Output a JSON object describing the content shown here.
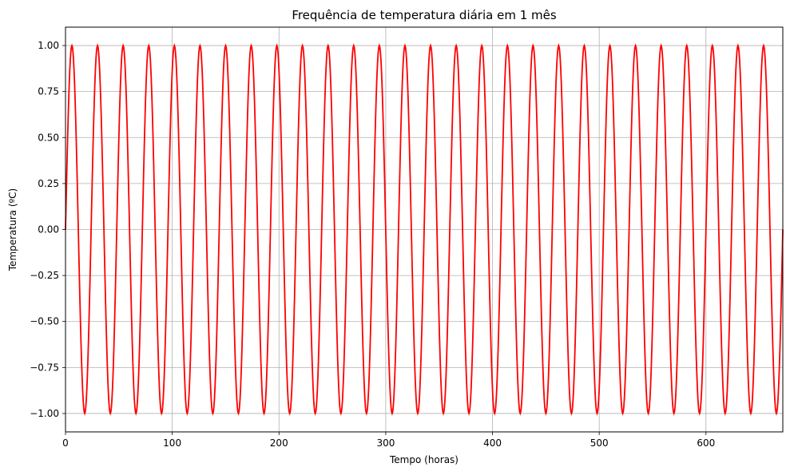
{
  "chart_data": {
    "type": "line",
    "title": "Frequência de temperatura diária em 1 mês",
    "xlabel": "Tempo (horas)",
    "ylabel": "Temperatura (ºC)",
    "xlim": [
      0,
      672
    ],
    "ylim": [
      -1.1,
      1.1
    ],
    "x_ticks": [
      0,
      100,
      200,
      300,
      400,
      500,
      600
    ],
    "x_tick_labels": [
      "0",
      "100",
      "200",
      "300",
      "400",
      "500",
      "600"
    ],
    "y_ticks": [
      1.0,
      0.75,
      0.5,
      0.25,
      0.0,
      -0.25,
      -0.5,
      -0.75,
      -1.0
    ],
    "y_tick_labels": [
      "1.00",
      "0.75",
      "0.50",
      "0.25",
      "0.00",
      "−0.25",
      "−0.50",
      "−0.75",
      "−1.00"
    ],
    "grid": true,
    "series": [
      {
        "function": "sin(2*pi*x/24)",
        "period_hours": 24,
        "amplitude": 1.0,
        "x_start": 0,
        "x_end": 672,
        "sampled_x": [
          0,
          6,
          12,
          18,
          24,
          30,
          36,
          42,
          48
        ],
        "sampled_y": [
          0,
          1,
          0,
          -1,
          0,
          1,
          0,
          -1,
          0
        ],
        "color": "#ff0000"
      }
    ]
  }
}
